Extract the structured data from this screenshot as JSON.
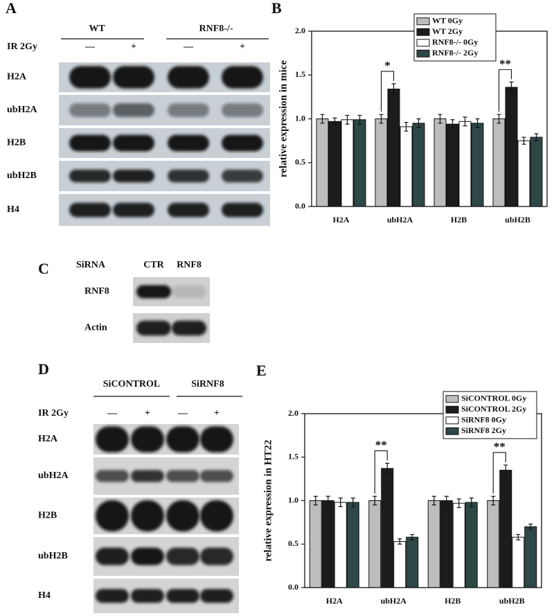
{
  "blots": [
    {
      "label": "A",
      "groups": [
        "WT",
        "RNF8-/-"
      ],
      "treatment": "IR 2Gy",
      "lanes": [
        "—",
        "+",
        "—",
        "+"
      ],
      "rows": [
        "H2A",
        "ubH2A",
        "H2B",
        "ubH2B",
        "H4"
      ]
    },
    {
      "label": "C",
      "treatment": "SiRNA",
      "lanes": [
        "CTR",
        "RNF8"
      ],
      "rows": [
        "RNF8",
        "Actin"
      ]
    },
    {
      "label": "D",
      "groups": [
        "SiCONTROL",
        "SiRNF8"
      ],
      "treatment": "IR 2Gy",
      "lanes": [
        "—",
        "+",
        "—",
        "+"
      ],
      "rows": [
        "H2A",
        "ubH2A",
        "H2B",
        "ubH2B",
        "H4"
      ]
    }
  ],
  "chart_data": [
    {
      "type": "bar",
      "label": "B",
      "y_label": "relative expression in mice",
      "categories": [
        "H2A",
        "ubH2A",
        "H2B",
        "ubH2B"
      ],
      "ylim": [
        0,
        2.0
      ],
      "yticks": [
        {
          "value": 0,
          "label": "0.0"
        },
        {
          "value": 0.5,
          "label": "0.5"
        },
        {
          "value": 1.0,
          "label": "1.0"
        },
        {
          "value": 1.5,
          "label": "1.5"
        },
        {
          "value": 2.0,
          "label": "2.0"
        }
      ],
      "series": [
        {
          "name": "WT 0Gy",
          "color": "#bdbdbd",
          "values": [
            1.0,
            1.0,
            1.0,
            1.0
          ],
          "errors": [
            0.05,
            0.05,
            0.05,
            0.05
          ]
        },
        {
          "name": "WT 2Gy",
          "color": "#1c1c1c",
          "values": [
            0.97,
            1.34,
            0.94,
            1.36
          ],
          "errors": [
            0.04,
            0.06,
            0.05,
            0.06
          ]
        },
        {
          "name": "RNF8-/-  0Gy",
          "color": "#ffffff",
          "values": [
            0.99,
            0.91,
            0.97,
            0.75
          ],
          "errors": [
            0.05,
            0.05,
            0.05,
            0.04
          ]
        },
        {
          "name": "RNF8-/-  2Gy",
          "color": "#2e4747",
          "values": [
            0.99,
            0.95,
            0.95,
            0.79
          ],
          "errors": [
            0.05,
            0.05,
            0.05,
            0.04
          ]
        }
      ],
      "annotations": [
        "*",
        "**"
      ]
    },
    {
      "type": "bar",
      "label": "E",
      "y_label": "relative expression in HT22",
      "categories": [
        "H2A",
        "ubH2A",
        "H2B",
        "ubH2B"
      ],
      "ylim": [
        0,
        2.0
      ],
      "yticks": [
        {
          "value": 0,
          "label": "0.0"
        },
        {
          "value": 0.5,
          "label": "0.5"
        },
        {
          "value": 1.0,
          "label": "1.0"
        },
        {
          "value": 1.5,
          "label": "1.5"
        },
        {
          "value": 2.0,
          "label": "2.0"
        }
      ],
      "series": [
        {
          "name": "SiCONTROL 0Gy",
          "color": "#bdbdbd",
          "values": [
            1.0,
            1.0,
            1.0,
            1.0
          ],
          "errors": [
            0.05,
            0.05,
            0.05,
            0.05
          ]
        },
        {
          "name": "SiCONTROL 2Gy",
          "color": "#1c1c1c",
          "values": [
            1.0,
            1.37,
            1.0,
            1.35
          ],
          "errors": [
            0.05,
            0.06,
            0.05,
            0.06
          ]
        },
        {
          "name": "SiRNF8 0Gy",
          "color": "#ffffff",
          "values": [
            0.98,
            0.53,
            0.97,
            0.58
          ],
          "errors": [
            0.05,
            0.03,
            0.05,
            0.03
          ]
        },
        {
          "name": "SiRNF8 2Gy",
          "color": "#2e4747",
          "values": [
            0.98,
            0.58,
            0.98,
            0.7
          ],
          "errors": [
            0.05,
            0.03,
            0.05,
            0.03
          ]
        }
      ],
      "annotations": [
        "**",
        "**"
      ]
    }
  ]
}
